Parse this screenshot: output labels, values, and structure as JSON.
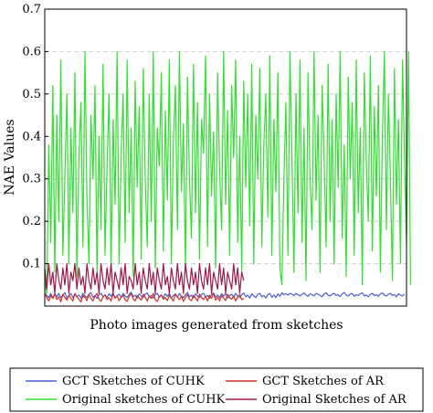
{
  "chart_data": {
    "type": "line",
    "title": "",
    "xlabel": "Photo images generated from sketches",
    "ylabel": "NAE Values",
    "ylim": [
      0,
      0.7
    ],
    "xlim": [
      0,
      180
    ],
    "yticks": [
      0.1,
      0.2,
      0.3,
      0.4,
      0.5,
      0.6,
      0.7
    ],
    "ytick_labels": [
      "0.1",
      "0.2",
      "0.3",
      "0.4",
      "0.5",
      "0.6",
      "0.7"
    ],
    "grid": "horizontal-dashed",
    "legend_position": "bottom",
    "legend_columns": 2,
    "series": [
      {
        "name": "GCT Sketches of CUHK",
        "color": "#4a5fd0",
        "x_start": 0,
        "values": [
          0.03,
          0.025,
          0.02,
          0.03,
          0.018,
          0.028,
          0.022,
          0.03,
          0.02,
          0.025,
          0.032,
          0.018,
          0.025,
          0.03,
          0.02,
          0.028,
          0.022,
          0.026,
          0.019,
          0.03,
          0.024,
          0.02,
          0.028,
          0.032,
          0.021,
          0.025,
          0.018,
          0.027,
          0.03,
          0.022,
          0.026,
          0.02,
          0.029,
          0.023,
          0.031,
          0.019,
          0.025,
          0.028,
          0.021,
          0.03,
          0.024,
          0.02,
          0.027,
          0.033,
          0.022,
          0.026,
          0.019,
          0.029,
          0.024,
          0.02,
          0.028,
          0.031,
          0.022,
          0.025,
          0.019,
          0.027,
          0.03,
          0.021,
          0.026,
          0.02,
          0.029,
          0.023,
          0.03,
          0.019,
          0.025,
          0.028,
          0.021,
          0.03,
          0.024,
          0.02,
          0.027,
          0.032,
          0.022,
          0.026,
          0.019,
          0.029,
          0.024,
          0.02,
          0.028,
          0.03,
          0.022,
          0.025,
          0.019,
          0.027,
          0.031,
          0.021,
          0.026,
          0.02,
          0.029,
          0.023,
          0.03,
          0.019,
          0.025,
          0.028,
          0.021,
          0.03,
          0.024,
          0.02,
          0.027,
          0.031,
          0.022,
          0.026,
          0.019,
          0.029,
          0.024,
          0.02,
          0.028,
          0.03,
          0.022,
          0.025,
          0.019,
          0.027,
          0.03,
          0.021,
          0.026,
          0.02,
          0.029,
          0.023,
          0.031,
          0.027,
          0.029,
          0.026,
          0.03,
          0.028,
          0.025,
          0.03,
          0.027,
          0.024,
          0.028,
          0.031,
          0.026,
          0.023,
          0.029,
          0.027,
          0.024,
          0.03,
          0.028,
          0.025,
          0.022,
          0.029,
          0.031,
          0.026,
          0.024,
          0.028,
          0.03,
          0.025,
          0.027,
          0.022,
          0.029,
          0.032,
          0.026,
          0.024,
          0.028,
          0.03,
          0.023,
          0.027,
          0.025,
          0.029,
          0.031,
          0.024,
          0.026,
          0.022,
          0.028,
          0.03,
          0.025,
          0.027,
          0.023,
          0.029,
          0.031,
          0.026,
          0.024,
          0.028,
          0.03,
          0.025,
          0.027,
          0.022,
          0.029,
          0.026,
          0.024,
          0.028
        ]
      },
      {
        "name": "GCT Sketches of AR",
        "color": "#d03028",
        "x_start": 0,
        "values": [
          0.03,
          0.02,
          0.012,
          0.025,
          0.018,
          0.03,
          0.015,
          0.022,
          0.01,
          0.028,
          0.02,
          0.014,
          0.026,
          0.018,
          0.012,
          0.03,
          0.022,
          0.016,
          0.01,
          0.025,
          0.02,
          0.013,
          0.028,
          0.018,
          0.012,
          0.024,
          0.03,
          0.016,
          0.011,
          0.022,
          0.027,
          0.015,
          0.02,
          0.012,
          0.029,
          0.018,
          0.024,
          0.013,
          0.02,
          0.026,
          0.015,
          0.011,
          0.023,
          0.03,
          0.017,
          0.012,
          0.025,
          0.019,
          0.014,
          0.028,
          0.021,
          0.012,
          0.024,
          0.018,
          0.03,
          0.015,
          0.011,
          0.022,
          0.027,
          0.016,
          0.02,
          0.013,
          0.026,
          0.018,
          0.012,
          0.029,
          0.021,
          0.015,
          0.024,
          0.011,
          0.02,
          0.027,
          0.016,
          0.013,
          0.025,
          0.019,
          0.012,
          0.028,
          0.02,
          0.015,
          0.023,
          0.012,
          0.026,
          0.018,
          0.03,
          0.014,
          0.021,
          0.012,
          0.025,
          0.019,
          0.013,
          0.028,
          0.02,
          0.016,
          0.024,
          0.012,
          0.022,
          0.027,
          0.015,
          0.018
        ]
      },
      {
        "name": "Original sketches of CUHK",
        "color": "#33dd33",
        "x_start": 0,
        "values": [
          0.06,
          0.03,
          0.38,
          0.15,
          0.52,
          0.08,
          0.45,
          0.2,
          0.58,
          0.12,
          0.3,
          0.5,
          0.1,
          0.42,
          0.22,
          0.55,
          0.07,
          0.35,
          0.48,
          0.14,
          0.6,
          0.25,
          0.1,
          0.45,
          0.3,
          0.52,
          0.08,
          0.4,
          0.18,
          0.57,
          0.12,
          0.33,
          0.5,
          0.09,
          0.44,
          0.24,
          0.6,
          0.1,
          0.36,
          0.5,
          0.15,
          0.58,
          0.22,
          0.42,
          0.07,
          0.53,
          0.28,
          0.47,
          0.11,
          0.56,
          0.3,
          0.14,
          0.5,
          0.2,
          0.6,
          0.09,
          0.42,
          0.33,
          0.55,
          0.13,
          0.46,
          0.25,
          0.58,
          0.1,
          0.39,
          0.52,
          0.18,
          0.6,
          0.27,
          0.43,
          0.08,
          0.54,
          0.3,
          0.16,
          0.57,
          0.22,
          0.48,
          0.11,
          0.44,
          0.36,
          0.59,
          0.14,
          0.5,
          0.26,
          0.41,
          0.09,
          0.55,
          0.32,
          0.18,
          0.6,
          0.24,
          0.46,
          0.12,
          0.52,
          0.35,
          0.58,
          0.15,
          0.4,
          0.08,
          0.53,
          0.28,
          0.5,
          0.19,
          0.57,
          0.1,
          0.45,
          0.3,
          0.56,
          0.14,
          0.38,
          0.5,
          0.21,
          0.59,
          0.12,
          0.44,
          0.27,
          0.55,
          0.09,
          0.05,
          0.3,
          0.48,
          0.12,
          0.6,
          0.35,
          0.08,
          0.5,
          0.22,
          0.58,
          0.15,
          0.42,
          0.06,
          0.55,
          0.3,
          0.18,
          0.6,
          0.25,
          0.45,
          0.08,
          0.52,
          0.35,
          0.14,
          0.57,
          0.2,
          0.44,
          0.1,
          0.5,
          0.28,
          0.6,
          0.16,
          0.38,
          0.07,
          0.54,
          0.3,
          0.48,
          0.12,
          0.58,
          0.22,
          0.42,
          0.05,
          0.55,
          0.34,
          0.2,
          0.59,
          0.13,
          0.47,
          0.26,
          0.52,
          0.08,
          0.4,
          0.6,
          0.18,
          0.5,
          0.3,
          0.06,
          0.56,
          0.24,
          0.44,
          0.1,
          0.58,
          0.35,
          0.15,
          0.6,
          0.05
        ]
      },
      {
        "name": "Original Sketches of AR",
        "color": "#a01848",
        "x_start": 0,
        "values": [
          0.09,
          0.04,
          0.1,
          0.05,
          0.08,
          0.03,
          0.1,
          0.06,
          0.04,
          0.09,
          0.05,
          0.1,
          0.03,
          0.08,
          0.06,
          0.1,
          0.04,
          0.09,
          0.05,
          0.07,
          0.03,
          0.1,
          0.06,
          0.04,
          0.09,
          0.05,
          0.08,
          0.03,
          0.1,
          0.06,
          0.04,
          0.09,
          0.05,
          0.1,
          0.03,
          0.08,
          0.06,
          0.04,
          0.09,
          0.05,
          0.1,
          0.03,
          0.07,
          0.06,
          0.04,
          0.1,
          0.05,
          0.08,
          0.03,
          0.09,
          0.06,
          0.04,
          0.1,
          0.05,
          0.08,
          0.03,
          0.09,
          0.06,
          0.04,
          0.1,
          0.05,
          0.07,
          0.03,
          0.09,
          0.06,
          0.04,
          0.1,
          0.05,
          0.08,
          0.03,
          0.1,
          0.06,
          0.04,
          0.09,
          0.05,
          0.08,
          0.03,
          0.1,
          0.06,
          0.04,
          0.09,
          0.05,
          0.1,
          0.03,
          0.08,
          0.06,
          0.04,
          0.1,
          0.05,
          0.09,
          0.03,
          0.08,
          0.06,
          0.04,
          0.1,
          0.05,
          0.09,
          0.03,
          0.08,
          0.06
        ]
      }
    ]
  }
}
